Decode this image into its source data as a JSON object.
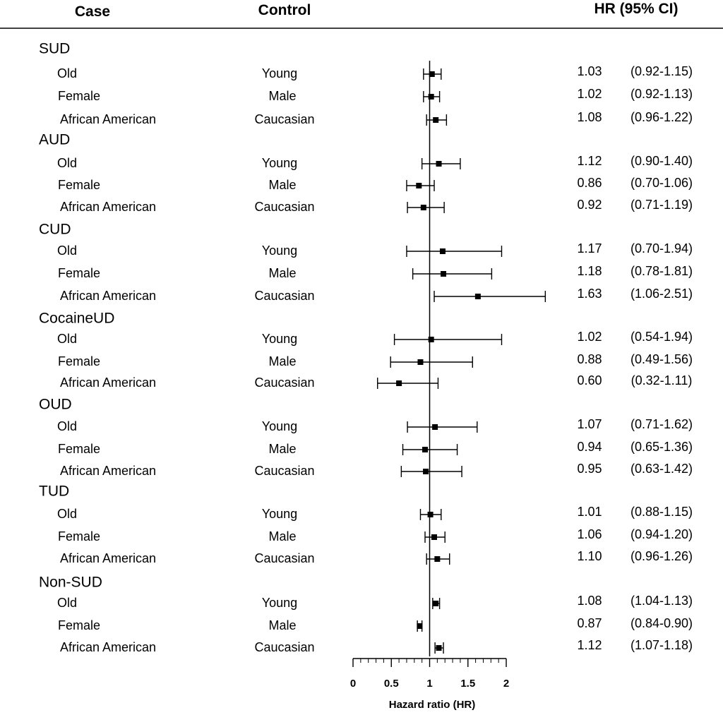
{
  "chart_data": {
    "type": "forest",
    "headers": {
      "case": "Case",
      "control": "Control",
      "hr": "HR (95%  CI)"
    },
    "xlabel": "Hazard ratio (HR)",
    "xlim": [
      0,
      2
    ],
    "xticks": [
      "0",
      "0.5",
      "1",
      "1.5",
      "2"
    ],
    "reference_line": 1,
    "groups": [
      {
        "name": "SUD",
        "rows": [
          {
            "case": "Old",
            "control": "Young",
            "hr": 1.03,
            "lo": 0.92,
            "hi": 1.15,
            "hr_text": "1.03",
            "ci_text": "(0.92-1.15)"
          },
          {
            "case": "Female",
            "control": "Male",
            "hr": 1.02,
            "lo": 0.92,
            "hi": 1.13,
            "hr_text": "1.02",
            "ci_text": "(0.92-1.13)"
          },
          {
            "case": "African American",
            "control": "Caucasian",
            "hr": 1.08,
            "lo": 0.96,
            "hi": 1.22,
            "hr_text": "1.08",
            "ci_text": "(0.96-1.22)"
          }
        ]
      },
      {
        "name": "AUD",
        "rows": [
          {
            "case": "Old",
            "control": "Young",
            "hr": 1.12,
            "lo": 0.9,
            "hi": 1.4,
            "hr_text": "1.12",
            "ci_text": "(0.90-1.40)"
          },
          {
            "case": "Female",
            "control": "Male",
            "hr": 0.86,
            "lo": 0.7,
            "hi": 1.06,
            "hr_text": "0.86",
            "ci_text": "(0.70-1.06)"
          },
          {
            "case": "African American",
            "control": "Caucasian",
            "hr": 0.92,
            "lo": 0.71,
            "hi": 1.19,
            "hr_text": "0.92",
            "ci_text": "(0.71-1.19)"
          }
        ]
      },
      {
        "name": "CUD",
        "rows": [
          {
            "case": "Old",
            "control": "Young",
            "hr": 1.17,
            "lo": 0.7,
            "hi": 1.94,
            "hr_text": "1.17",
            "ci_text": "(0.70-1.94)"
          },
          {
            "case": "Female",
            "control": "Male",
            "hr": 1.18,
            "lo": 0.78,
            "hi": 1.81,
            "hr_text": "1.18",
            "ci_text": "(0.78-1.81)"
          },
          {
            "case": "African American",
            "control": "Caucasian",
            "hr": 1.63,
            "lo": 1.06,
            "hi": 2.51,
            "hr_text": "1.63",
            "ci_text": "(1.06-2.51)"
          }
        ]
      },
      {
        "name": "CocaineUD",
        "rows": [
          {
            "case": "Old",
            "control": "Young",
            "hr": 1.02,
            "lo": 0.54,
            "hi": 1.94,
            "hr_text": "1.02",
            "ci_text": "(0.54-1.94)"
          },
          {
            "case": "Female",
            "control": "Male",
            "hr": 0.88,
            "lo": 0.49,
            "hi": 1.56,
            "hr_text": "0.88",
            "ci_text": "(0.49-1.56)"
          },
          {
            "case": "African American",
            "control": "Caucasian",
            "hr": 0.6,
            "lo": 0.32,
            "hi": 1.11,
            "hr_text": "0.60",
            "ci_text": "(0.32-1.11)"
          }
        ]
      },
      {
        "name": "OUD",
        "rows": [
          {
            "case": "Old",
            "control": "Young",
            "hr": 1.07,
            "lo": 0.71,
            "hi": 1.62,
            "hr_text": "1.07",
            "ci_text": "(0.71-1.62)"
          },
          {
            "case": "Female",
            "control": "Male",
            "hr": 0.94,
            "lo": 0.65,
            "hi": 1.36,
            "hr_text": "0.94",
            "ci_text": "(0.65-1.36)"
          },
          {
            "case": "African American",
            "control": "Caucasian",
            "hr": 0.95,
            "lo": 0.63,
            "hi": 1.42,
            "hr_text": "0.95",
            "ci_text": "(0.63-1.42)"
          }
        ]
      },
      {
        "name": "TUD",
        "rows": [
          {
            "case": "Old",
            "control": "Young",
            "hr": 1.01,
            "lo": 0.88,
            "hi": 1.15,
            "hr_text": "1.01",
            "ci_text": "(0.88-1.15)"
          },
          {
            "case": "Female",
            "control": "Male",
            "hr": 1.06,
            "lo": 0.94,
            "hi": 1.2,
            "hr_text": "1.06",
            "ci_text": "(0.94-1.20)"
          },
          {
            "case": "African American",
            "control": "Caucasian",
            "hr": 1.1,
            "lo": 0.96,
            "hi": 1.26,
            "hr_text": "1.10",
            "ci_text": "(0.96-1.26)"
          }
        ]
      },
      {
        "name": "Non-SUD",
        "rows": [
          {
            "case": "Old",
            "control": "Young",
            "hr": 1.08,
            "lo": 1.04,
            "hi": 1.13,
            "hr_text": "1.08",
            "ci_text": "(1.04-1.13)"
          },
          {
            "case": "Female",
            "control": "Male",
            "hr": 0.87,
            "lo": 0.84,
            "hi": 0.9,
            "hr_text": "0.87",
            "ci_text": "(0.84-0.90)"
          },
          {
            "case": "African American",
            "control": "Caucasian",
            "hr": 1.12,
            "lo": 1.07,
            "hi": 1.18,
            "hr_text": "1.12",
            "ci_text": "(1.07-1.18)"
          }
        ]
      }
    ]
  }
}
